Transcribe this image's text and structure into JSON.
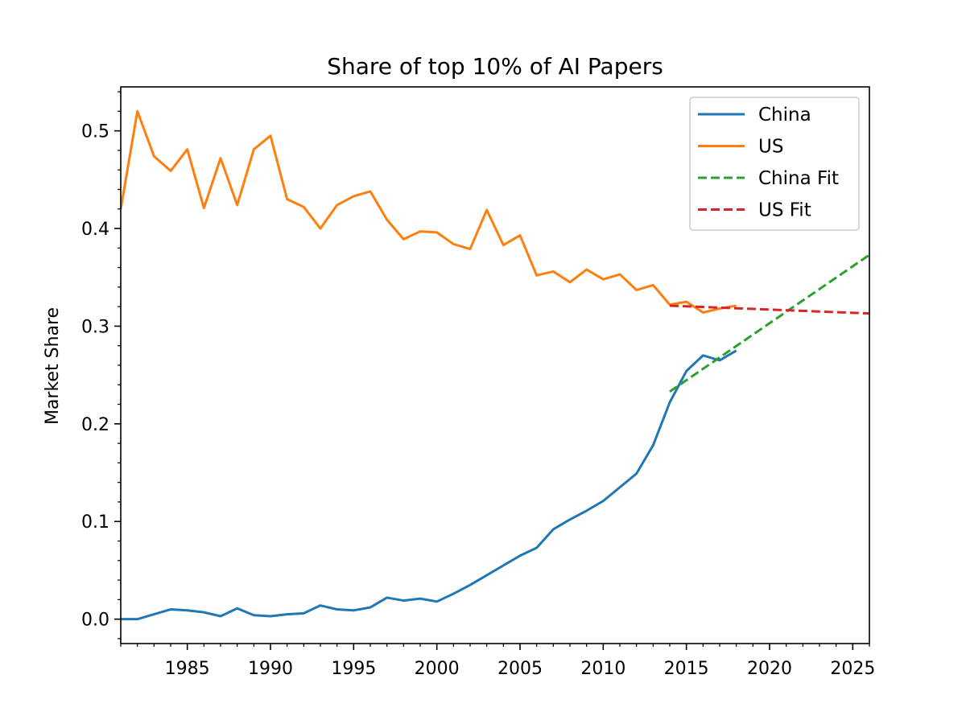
{
  "colors": {
    "china": "#1f77b4",
    "us": "#ff7f0e",
    "china_fit": "#2ca02c",
    "us_fit": "#d62728",
    "axis": "#000000",
    "legend_border": "#cccccc"
  },
  "chart_data": {
    "type": "line",
    "title": "Share of top 10% of AI Papers",
    "xlabel": "",
    "ylabel": "Market Share",
    "xlim": [
      1981,
      2026
    ],
    "ylim": [
      -0.025,
      0.545
    ],
    "xticks": [
      1985,
      1990,
      1995,
      2000,
      2005,
      2010,
      2015,
      2020,
      2025
    ],
    "xtick_labels": [
      "1985",
      "1990",
      "1995",
      "2000",
      "2005",
      "2010",
      "2015",
      "2020",
      "2025"
    ],
    "yticks": [
      0.0,
      0.1,
      0.2,
      0.3,
      0.4,
      0.5
    ],
    "ytick_labels": [
      "0.0",
      "0.1",
      "0.2",
      "0.3",
      "0.4",
      "0.5"
    ],
    "legend_position": "top-right",
    "series": [
      {
        "name": "China",
        "style": "solid",
        "x": [
          1981,
          1982,
          1983,
          1984,
          1985,
          1986,
          1987,
          1988,
          1989,
          1990,
          1991,
          1992,
          1993,
          1994,
          1995,
          1996,
          1997,
          1998,
          1999,
          2000,
          2001,
          2002,
          2003,
          2004,
          2005,
          2006,
          2007,
          2008,
          2009,
          2010,
          2011,
          2012,
          2013,
          2014,
          2015,
          2016,
          2017,
          2018
        ],
        "y": [
          0.0,
          0.0,
          0.005,
          0.01,
          0.009,
          0.007,
          0.003,
          0.011,
          0.004,
          0.003,
          0.005,
          0.006,
          0.014,
          0.01,
          0.009,
          0.012,
          0.022,
          0.019,
          0.021,
          0.018,
          0.026,
          0.035,
          0.045,
          0.055,
          0.065,
          0.073,
          0.092,
          0.102,
          0.111,
          0.121,
          0.135,
          0.149,
          0.178,
          0.222,
          0.254,
          0.27,
          0.265,
          0.275
        ]
      },
      {
        "name": "US",
        "style": "solid",
        "x": [
          1981,
          1982,
          1983,
          1984,
          1985,
          1986,
          1987,
          1988,
          1989,
          1990,
          1991,
          1992,
          1993,
          1994,
          1995,
          1996,
          1997,
          1998,
          1999,
          2000,
          2001,
          2002,
          2003,
          2004,
          2005,
          2006,
          2007,
          2008,
          2009,
          2010,
          2011,
          2012,
          2013,
          2014,
          2015,
          2016,
          2017,
          2018
        ],
        "y": [
          0.42,
          0.52,
          0.474,
          0.459,
          0.481,
          0.421,
          0.472,
          0.424,
          0.481,
          0.495,
          0.43,
          0.422,
          0.4,
          0.424,
          0.433,
          0.438,
          0.409,
          0.389,
          0.397,
          0.396,
          0.384,
          0.379,
          0.419,
          0.383,
          0.393,
          0.352,
          0.356,
          0.345,
          0.358,
          0.348,
          0.353,
          0.337,
          0.342,
          0.322,
          0.325,
          0.314,
          0.318,
          0.321
        ]
      },
      {
        "name": "China Fit",
        "style": "dashed",
        "x": [
          2014,
          2026
        ],
        "y": [
          0.233,
          0.373
        ]
      },
      {
        "name": "US Fit",
        "style": "dashed",
        "x": [
          2014,
          2026
        ],
        "y": [
          0.321,
          0.313
        ]
      }
    ]
  }
}
